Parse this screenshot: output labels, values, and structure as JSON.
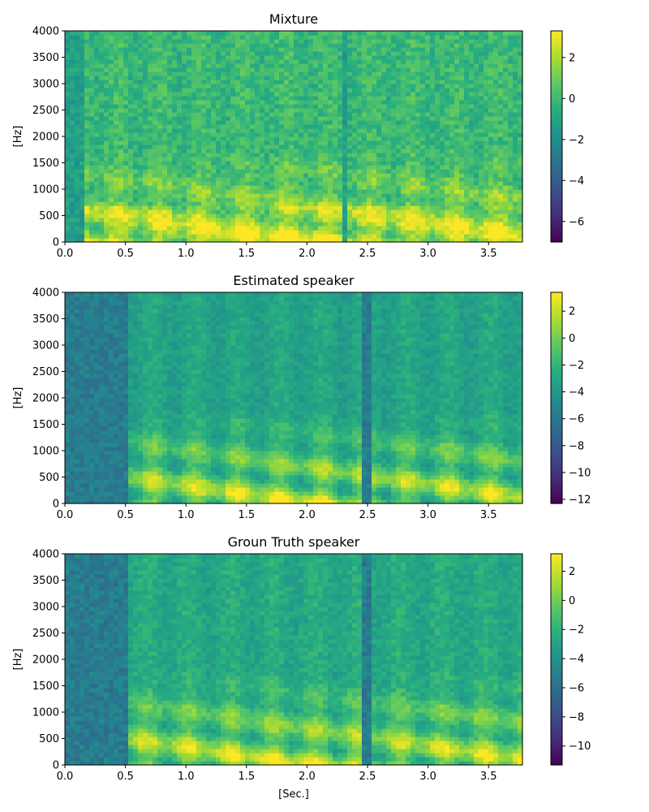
{
  "chart_data": [
    {
      "type": "heatmap",
      "title": "Mixture",
      "xlabel": "",
      "ylabel": "[Hz]",
      "xlim": [
        0.0,
        3.78
      ],
      "ylim": [
        0,
        4000
      ],
      "xticks": [
        0.0,
        0.5,
        1.0,
        1.5,
        2.0,
        2.5,
        3.0,
        3.5
      ],
      "xtick_labels": [
        "0.0",
        "0.5",
        "1.0",
        "1.5",
        "2.0",
        "2.5",
        "3.0",
        "3.5"
      ],
      "yticks": [
        0,
        500,
        1000,
        1500,
        2000,
        2500,
        3000,
        3500,
        4000
      ],
      "ytick_labels": [
        "0",
        "500",
        "1000",
        "1500",
        "2000",
        "2500",
        "3000",
        "3500",
        "4000"
      ],
      "colormap": "viridis",
      "colorbar": {
        "range": [
          -7,
          3.3
        ],
        "ticks": [
          2,
          0,
          -2,
          -4,
          -6
        ],
        "tick_labels": [
          "2",
          "0",
          "−2",
          "−4",
          "−6"
        ]
      },
      "speech_segments": [
        [
          0.15,
          2.28
        ],
        [
          2.33,
          3.78
        ]
      ],
      "harmonic_floor": -1.5
    },
    {
      "type": "heatmap",
      "title": "Estimated speaker",
      "xlabel": "",
      "ylabel": "[Hz]",
      "xlim": [
        0.0,
        3.78
      ],
      "ylim": [
        0,
        4000
      ],
      "xticks": [
        0.0,
        0.5,
        1.0,
        1.5,
        2.0,
        2.5,
        3.0,
        3.5
      ],
      "xtick_labels": [
        "0.0",
        "0.5",
        "1.0",
        "1.5",
        "2.0",
        "2.5",
        "3.0",
        "3.5"
      ],
      "yticks": [
        0,
        500,
        1000,
        1500,
        2000,
        2500,
        3000,
        3500,
        4000
      ],
      "ytick_labels": [
        "0",
        "500",
        "1000",
        "1500",
        "2000",
        "2500",
        "3000",
        "3500",
        "4000"
      ],
      "colormap": "viridis",
      "colorbar": {
        "range": [
          -12.3,
          3.4
        ],
        "ticks": [
          2,
          0,
          -2,
          -4,
          -6,
          -8,
          -10,
          -12
        ],
        "tick_labels": [
          "2",
          "0",
          "−2",
          "−4",
          "−6",
          "−8",
          "−10",
          "−12"
        ]
      },
      "speech_segments": [
        [
          0.51,
          2.45
        ],
        [
          2.55,
          3.78
        ]
      ],
      "harmonic_floor": -6
    },
    {
      "type": "heatmap",
      "title": "Groun Truth speaker",
      "xlabel": "[Sec.]",
      "ylabel": "[Hz]",
      "xlim": [
        0.0,
        3.78
      ],
      "ylim": [
        0,
        4000
      ],
      "xticks": [
        0.0,
        0.5,
        1.0,
        1.5,
        2.0,
        2.5,
        3.0,
        3.5
      ],
      "xtick_labels": [
        "0.0",
        "0.5",
        "1.0",
        "1.5",
        "2.0",
        "2.5",
        "3.0",
        "3.5"
      ],
      "yticks": [
        0,
        500,
        1000,
        1500,
        2000,
        2500,
        3000,
        3500,
        4000
      ],
      "ytick_labels": [
        "0",
        "500",
        "1000",
        "1500",
        "2000",
        "2500",
        "3000",
        "3500",
        "4000"
      ],
      "colormap": "viridis",
      "colorbar": {
        "range": [
          -11.3,
          3.2
        ],
        "ticks": [
          2,
          0,
          -2,
          -4,
          -6,
          -8,
          -10
        ],
        "tick_labels": [
          "2",
          "0",
          "−2",
          "−4",
          "−6",
          "−8",
          "−10"
        ]
      },
      "speech_segments": [
        [
          0.51,
          2.45
        ],
        [
          2.55,
          3.78
        ]
      ],
      "harmonic_floor": -5
    }
  ]
}
